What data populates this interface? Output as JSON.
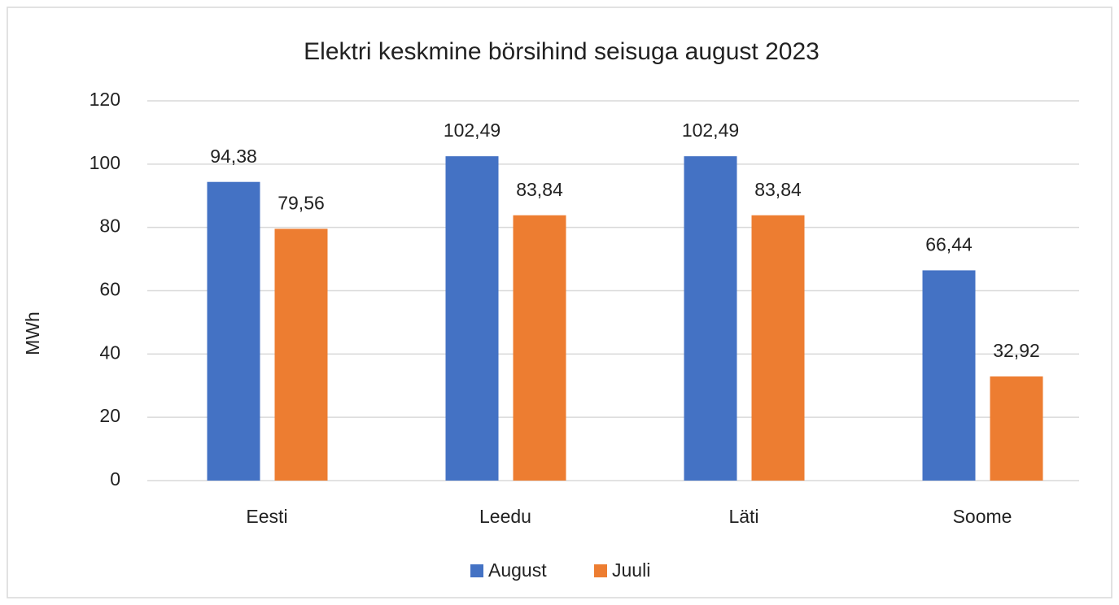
{
  "chart_data": {
    "type": "bar",
    "title": "Elektri keskmine börsihind seisuga august 2023",
    "y_label": "MWh",
    "categories": [
      "Eesti",
      "Leedu",
      "Läti",
      "Soome"
    ],
    "series": [
      {
        "name": "August",
        "color": "#4472c4",
        "values": [
          94.38,
          102.49,
          102.49,
          66.44
        ],
        "value_labels": [
          "94,38",
          "102,49",
          "102,49",
          "66,44"
        ]
      },
      {
        "name": "Juuli",
        "color": "#ed7d31",
        "values": [
          79.56,
          83.84,
          83.84,
          32.92
        ],
        "value_labels": [
          "79,56",
          "83,84",
          "83,84",
          "32,92"
        ]
      }
    ],
    "ylim": [
      0,
      120
    ],
    "yticks": [
      0,
      20,
      40,
      60,
      80,
      100,
      120
    ],
    "grid": true,
    "legend": "bottom"
  }
}
